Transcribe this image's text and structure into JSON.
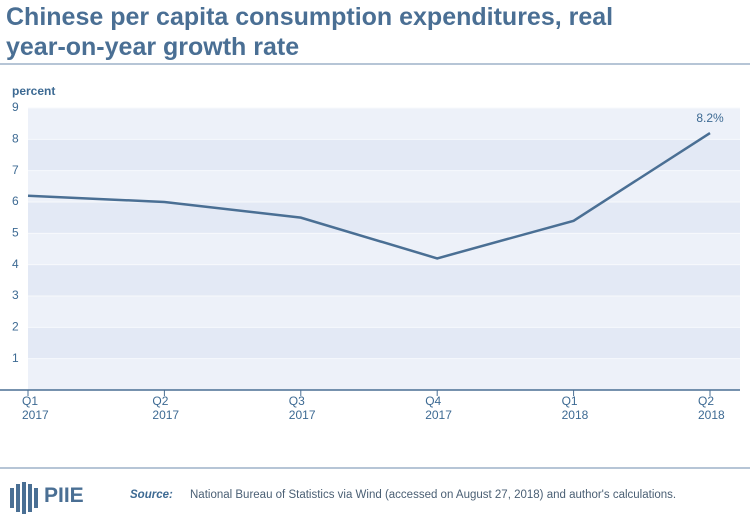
{
  "chart_data": {
    "type": "line",
    "title": "Chinese per capita consumption expenditures, real year-on-year growth rate",
    "y_label": "percent",
    "categories": [
      "Q1\n2017",
      "Q2\n2017",
      "Q3\n2017",
      "Q4\n2017",
      "Q1\n2018",
      "Q2\n2018"
    ],
    "series": [
      {
        "color": "#4a6f94",
        "values": [
          6.2,
          6.0,
          5.5,
          4.2,
          5.4,
          8.2
        ],
        "value_labels": [
          null,
          null,
          null,
          null,
          null,
          "8.2%"
        ]
      }
    ],
    "ylim": [
      0,
      9
    ],
    "yticks": [
      1,
      2,
      3,
      4,
      5,
      6,
      7,
      8,
      9
    ],
    "grid": true,
    "logo": "PIIE",
    "source": {
      "label": "Source:",
      "text": "National Bureau of Statistics via Wind (accessed on August 27, 2018) and author's calculations."
    }
  }
}
